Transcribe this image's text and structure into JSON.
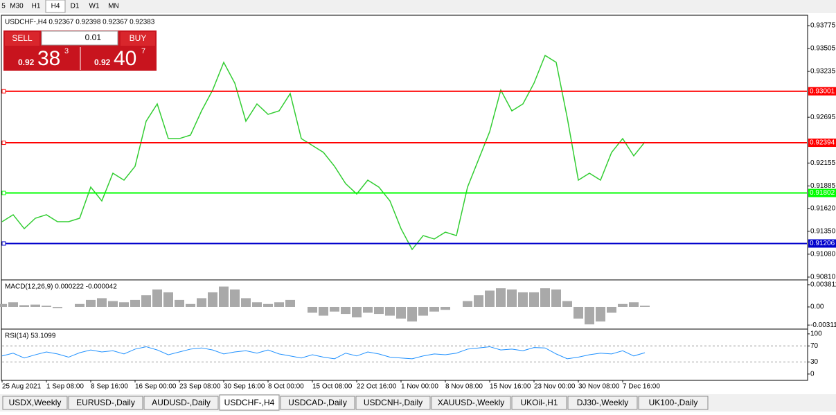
{
  "toolbar": {
    "timeframes": [
      "5",
      "M30",
      "H1",
      "H4",
      "D1",
      "W1",
      "MN"
    ]
  },
  "trade_panel": {
    "sell": "SELL",
    "buy": "BUY",
    "lot": "0.01",
    "sell_big": "0.92",
    "sell_pips": "38",
    "sell_point": "3",
    "buy_big": "0.92",
    "buy_pips": "40",
    "buy_point": "7"
  },
  "chart_data": [
    {
      "type": "line",
      "title": "USDCHF-,H4  0.92367 0.92398 0.92367 0.92383",
      "color": "#32cd32",
      "categories": [
        "25 Aug 2021",
        null,
        null,
        null,
        "1 Sep 08:00",
        null,
        null,
        null,
        "8 Sep 16:00",
        null,
        null,
        null,
        "16 Sep 00:00",
        null,
        null,
        null,
        "23 Sep 08:00",
        null,
        null,
        null,
        "30 Sep 16:00",
        null,
        null,
        null,
        "8 Oct 00:00",
        null,
        null,
        null,
        "15 Oct 08:00",
        null,
        null,
        null,
        "22 Oct 16:00",
        null,
        null,
        null,
        "1 Nov 00:00",
        null,
        null,
        null,
        "8 Nov 08:00",
        null,
        null,
        null,
        "15 Nov 16:00",
        null,
        null,
        null,
        "23 Nov 00:00",
        null,
        null,
        null,
        "30 Nov 08:00",
        null,
        null,
        null,
        "7 Dec 16:00",
        null,
        null
      ],
      "values": [
        0.91463,
        0.91545,
        0.91381,
        0.91504,
        0.91545,
        0.91463,
        0.91463,
        0.91504,
        0.91871,
        0.91708,
        0.92035,
        0.91953,
        0.92116,
        0.92648,
        0.92852,
        0.92443,
        0.92443,
        0.92484,
        0.9277,
        0.93015,
        0.93342,
        0.93097,
        0.92648,
        0.92852,
        0.92729,
        0.9277,
        0.92974,
        0.92443,
        0.92362,
        0.9228,
        0.92116,
        0.91912,
        0.9179,
        0.91953,
        0.91871,
        0.91708,
        0.91381,
        0.91136,
        0.91299,
        0.91259,
        0.9134,
        0.91299,
        0.91871,
        0.92198,
        0.92525,
        0.93015,
        0.9277,
        0.92852,
        0.93097,
        0.93424,
        0.93342,
        0.92688,
        0.91953,
        0.92035,
        0.91953,
        0.9228,
        0.92443,
        0.92239,
        0.92402
      ],
      "ylim": [
        0.90785,
        0.93873
      ],
      "yticks": [
        0.93775,
        0.93505,
        0.93235,
        0.92695,
        0.92155,
        0.91885,
        {
          "value": 0.9162,
          "label": "0.91620"
        },
        {
          "value": 0.9135,
          "label": "0.91350"
        },
        {
          "value": 0.9108,
          "label": "0.91080"
        },
        {
          "value": 0.9081,
          "label": "0.90810"
        }
      ],
      "levels": [
        {
          "value": 0.93001,
          "color": "#ff0000"
        },
        {
          "value": 0.92394,
          "color": "#ff0000"
        },
        {
          "value": 0.91802,
          "color": "#00ff00"
        },
        {
          "value": 0.91206,
          "color": "#0000cc"
        }
      ]
    },
    {
      "type": "bar",
      "title": "MACD(12,26,9) 0.000222 -0.000042",
      "color": "#a9a9a9",
      "values": [
        0.0005,
        0.0008,
        0.0003,
        0.0004,
        0.0002,
        -0.0002,
        0,
        0.0005,
        0.0012,
        0.0015,
        0.001,
        0.0008,
        0.0012,
        0.002,
        0.003,
        0.0025,
        0.0012,
        0.0005,
        0.0015,
        0.0025,
        0.0035,
        0.003,
        0.0015,
        0.0008,
        0.0005,
        0.0008,
        0.0012,
        0,
        -0.001,
        -0.0015,
        -0.0008,
        -0.0012,
        -0.0018,
        -0.001,
        -0.0012,
        -0.0015,
        -0.002,
        -0.0025,
        -0.0015,
        -0.0008,
        -0.0005,
        0,
        0.001,
        0.002,
        0.0028,
        0.0032,
        0.003,
        0.0025,
        0.0025,
        0.0032,
        0.003,
        0.001,
        -0.002,
        -0.003,
        -0.0025,
        -0.001,
        0.0005,
        0.0008,
        0.0002
      ],
      "ylim": [
        -0.00357,
        0.0044
      ],
      "yticks": [
        0.003811,
        {
          "value": 0,
          "label": "0.00"
        },
        -0.003115
      ]
    },
    {
      "type": "line",
      "title": "RSI(14) 53.1099",
      "color": "#1e90ff",
      "values": [
        45,
        52,
        40,
        48,
        55,
        50,
        42,
        53,
        60,
        55,
        58,
        50,
        62,
        68,
        60,
        48,
        55,
        62,
        65,
        60,
        50,
        55,
        58,
        52,
        60,
        50,
        45,
        40,
        48,
        42,
        38,
        52,
        45,
        55,
        50,
        42,
        40,
        38,
        45,
        50,
        48,
        52,
        62,
        65,
        68,
        60,
        62,
        58,
        66,
        65,
        50,
        38,
        42,
        48,
        52,
        50,
        58,
        45,
        53
      ],
      "ylim": [
        -14,
        105
      ],
      "yticks": [
        0,
        30,
        70,
        100
      ],
      "levels": [
        30,
        70
      ]
    }
  ],
  "tabs": [
    "USDX,Weekly",
    "EURUSD-,Daily",
    "AUDUSD-,Daily",
    "USDCHF-,H4",
    "USDCAD-,Daily",
    "USDCNH-,Daily",
    "XAUUSD-,Weekly",
    "UKOil-,H1",
    "DJ30-,Weekly",
    "UK100-,Daily"
  ],
  "active_tab": 3
}
